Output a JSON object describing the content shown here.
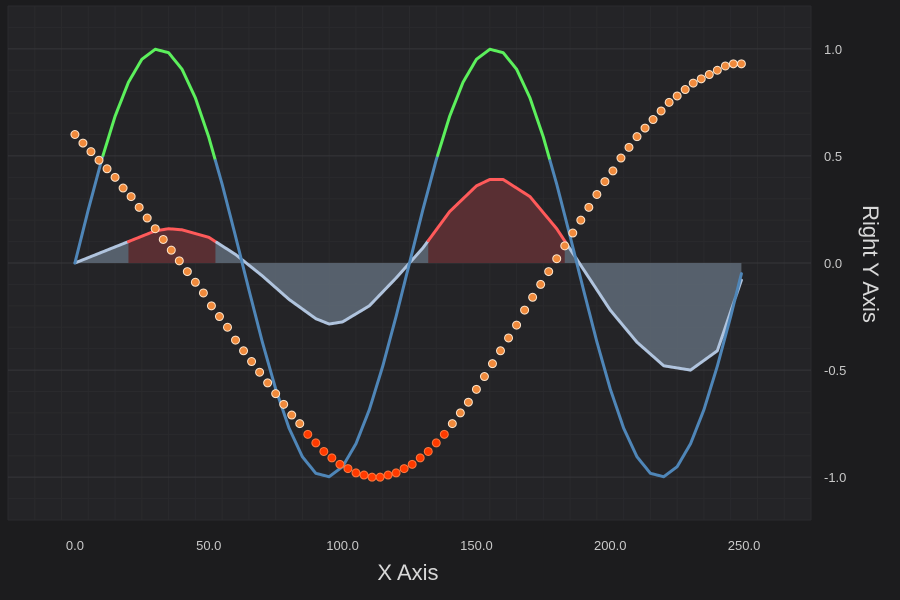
{
  "chart_data": {
    "type": "line",
    "title": "",
    "xlabel": "X Axis",
    "ylabel": "Right Y Axis",
    "xlim": [
      -25,
      275
    ],
    "ylim": [
      -1.2,
      1.2
    ],
    "y_axis_side": "right",
    "grid": true,
    "x_ticks": [
      0,
      50,
      100,
      150,
      200,
      250
    ],
    "x_tick_labels": [
      "0.0",
      "50.0",
      "100.0",
      "150.0",
      "200.0",
      "250.0"
    ],
    "y_ticks": [
      1,
      0.5,
      0,
      -0.5,
      -1
    ],
    "y_tick_labels": [
      "1.0",
      "0.5",
      "0.0",
      "-0.5",
      "-1.0"
    ],
    "series": [
      {
        "kind": "line",
        "color": "#4f86b8",
        "highlight_color": "#5cf05c",
        "highlight_above": 0.5,
        "x": [
          0,
          5,
          10,
          15,
          20,
          25,
          30,
          35,
          40,
          45,
          50,
          55,
          60,
          65,
          70,
          75,
          80,
          85,
          90,
          95,
          100,
          105,
          110,
          115,
          120,
          125,
          130,
          135,
          140,
          145,
          150,
          155,
          160,
          165,
          170,
          175,
          180,
          185,
          190,
          195,
          200,
          205,
          210,
          215,
          220,
          225,
          230,
          235,
          240,
          245,
          249
        ],
        "y": [
          0.0,
          0.249,
          0.482,
          0.685,
          0.844,
          0.951,
          0.998,
          0.982,
          0.905,
          0.771,
          0.588,
          0.368,
          0.125,
          -0.125,
          -0.368,
          -0.588,
          -0.771,
          -0.905,
          -0.982,
          -0.998,
          -0.951,
          -0.844,
          -0.685,
          -0.482,
          -0.249,
          0.0,
          0.249,
          0.482,
          0.685,
          0.844,
          0.951,
          0.998,
          0.982,
          0.905,
          0.771,
          0.588,
          0.368,
          0.125,
          -0.125,
          -0.368,
          -0.588,
          -0.771,
          -0.905,
          -0.982,
          -0.998,
          -0.951,
          -0.844,
          -0.685,
          -0.482,
          -0.249,
          -0.05
        ]
      },
      {
        "kind": "mountain",
        "color": "#b0c4de",
        "fill": "#5a6470",
        "highlight_color": "#ff5a5a",
        "highlight_fill": "#5a2a2e",
        "highlight_above": 0.1,
        "x": [
          0,
          10,
          20,
          30,
          35,
          40,
          50,
          60,
          70,
          80,
          90,
          95,
          100,
          110,
          120,
          125,
          130,
          140,
          150,
          155,
          160,
          170,
          180,
          190,
          200,
          210,
          220,
          230,
          240,
          249
        ],
        "y": [
          0.0,
          0.05,
          0.1,
          0.15,
          0.16,
          0.155,
          0.12,
          0.04,
          -0.06,
          -0.17,
          -0.26,
          -0.285,
          -0.275,
          -0.2,
          -0.07,
          0.0,
          0.07,
          0.24,
          0.36,
          0.39,
          0.39,
          0.31,
          0.16,
          -0.03,
          -0.22,
          -0.37,
          -0.48,
          -0.5,
          -0.41,
          -0.08
        ]
      },
      {
        "kind": "scatter",
        "color": "#f08a3c",
        "stroke": "#ffe6cc",
        "highlight_color": "#ff3a00",
        "highlight_below": -0.8,
        "x": [
          0,
          3,
          6,
          9,
          12,
          15,
          18,
          21,
          24,
          27,
          30,
          33,
          36,
          39,
          42,
          45,
          48,
          51,
          54,
          57,
          60,
          63,
          66,
          69,
          72,
          75,
          78,
          81,
          84,
          87,
          90,
          93,
          96,
          99,
          102,
          105,
          108,
          111,
          114,
          117,
          120,
          123,
          126,
          129,
          132,
          135,
          138,
          141,
          144,
          147,
          150,
          153,
          156,
          159,
          162,
          165,
          168,
          171,
          174,
          177,
          180,
          183,
          186,
          189,
          192,
          195,
          198,
          201,
          204,
          207,
          210,
          213,
          216,
          219,
          222,
          225,
          228,
          231,
          234,
          237,
          240,
          243,
          246,
          249
        ],
        "y": [
          0.6,
          0.56,
          0.52,
          0.48,
          0.44,
          0.4,
          0.35,
          0.31,
          0.26,
          0.21,
          0.16,
          0.11,
          0.06,
          0.01,
          -0.04,
          -0.09,
          -0.14,
          -0.2,
          -0.25,
          -0.3,
          -0.36,
          -0.41,
          -0.46,
          -0.51,
          -0.56,
          -0.61,
          -0.66,
          -0.71,
          -0.75,
          -0.8,
          -0.84,
          -0.88,
          -0.91,
          -0.94,
          -0.96,
          -0.98,
          -0.99,
          -1.0,
          -1.0,
          -0.99,
          -0.98,
          -0.96,
          -0.94,
          -0.91,
          -0.88,
          -0.84,
          -0.8,
          -0.75,
          -0.7,
          -0.65,
          -0.59,
          -0.53,
          -0.47,
          -0.41,
          -0.35,
          -0.29,
          -0.22,
          -0.16,
          -0.1,
          -0.04,
          0.02,
          0.08,
          0.14,
          0.2,
          0.26,
          0.32,
          0.38,
          0.43,
          0.49,
          0.54,
          0.59,
          0.63,
          0.67,
          0.71,
          0.75,
          0.78,
          0.81,
          0.84,
          0.86,
          0.88,
          0.9,
          0.92,
          0.93,
          0.93
        ]
      }
    ]
  }
}
